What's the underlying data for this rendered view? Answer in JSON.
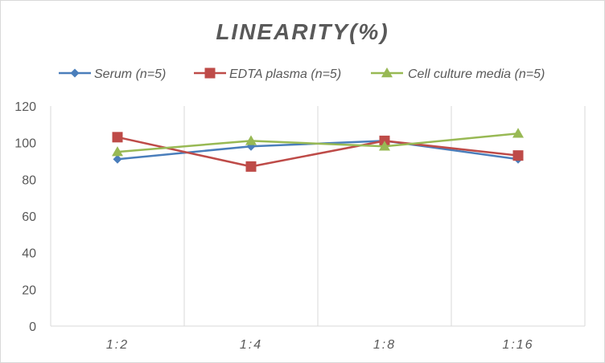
{
  "chart_data": {
    "type": "line",
    "title": "LINEARITY(%)",
    "categories": [
      "1:2",
      "1:4",
      "1:8",
      "1:16"
    ],
    "ylim": [
      0,
      120
    ],
    "yticks": [
      0,
      20,
      40,
      60,
      80,
      100,
      120
    ],
    "grid": "vertical",
    "legend_position": "top",
    "series": [
      {
        "name": "Serum (n=5)",
        "color": "#4a7ebb",
        "marker": "diamond",
        "values": [
          91,
          98,
          101,
          91
        ]
      },
      {
        "name": "EDTA plasma (n=5)",
        "color": "#be4b48",
        "marker": "square",
        "values": [
          103,
          87,
          101,
          93
        ]
      },
      {
        "name": "Cell culture media (n=5)",
        "color": "#98b954",
        "marker": "triangle",
        "values": [
          95,
          101,
          98,
          105
        ]
      }
    ]
  }
}
